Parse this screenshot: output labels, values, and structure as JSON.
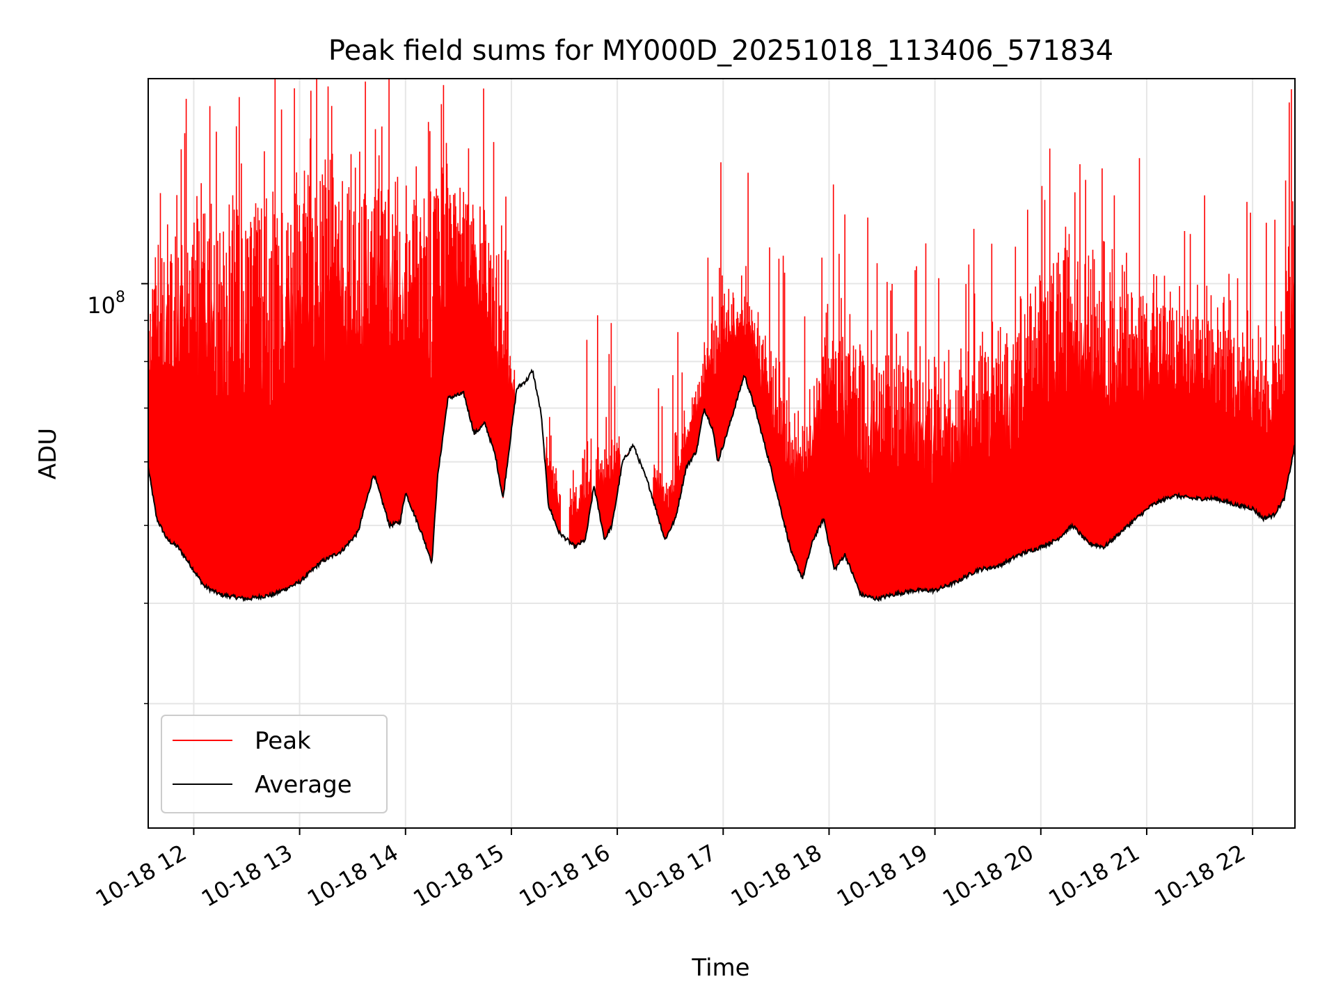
{
  "chart_data": {
    "type": "line",
    "title": "Peak field sums for MY000D_20251018_113406_571834",
    "xlabel": "Time",
    "ylabel": "ADU",
    "yscale": "log",
    "y_major_tick_label": {
      "base": "10",
      "exponent": "8"
    },
    "xlim_hours": [
      11.57,
      22.4
    ],
    "ylim": [
      21000000,
      180000000
    ],
    "x_tick_hours": [
      12,
      13,
      14,
      15,
      16,
      17,
      18,
      19,
      20,
      21,
      22
    ],
    "x_tick_labels": [
      "10-18 12",
      "10-18 13",
      "10-18 14",
      "10-18 15",
      "10-18 16",
      "10-18 17",
      "10-18 18",
      "10-18 19",
      "10-18 20",
      "10-18 21",
      "10-18 22"
    ],
    "y_minor_ticks": [
      30000000,
      40000000,
      50000000,
      60000000,
      70000000,
      80000000,
      90000000,
      200000000
    ],
    "grid": true,
    "legend_position": "lower-left",
    "series": [
      {
        "name": "Peak",
        "color": "#ff0000",
        "note": "spiky envelope above the average; approximate typical peak values",
        "x_hours": [
          11.57,
          11.75,
          12.0,
          12.25,
          12.5,
          12.75,
          13.0,
          13.25,
          13.5,
          13.75,
          14.0,
          14.25,
          14.5,
          14.75,
          15.0,
          15.2,
          15.5,
          15.75,
          16.0,
          16.25,
          16.5,
          16.75,
          17.0,
          17.25,
          17.5,
          17.75,
          18.0,
          18.25,
          18.5,
          18.75,
          19.0,
          19.25,
          19.5,
          19.75,
          20.0,
          20.25,
          20.5,
          20.75,
          21.0,
          21.25,
          21.5,
          21.75,
          22.0,
          22.25,
          22.4
        ],
        "values": [
          95000000,
          115000000,
          125000000,
          118000000,
          120000000,
          122000000,
          128000000,
          132000000,
          135000000,
          132000000,
          128000000,
          128000000,
          130000000,
          125000000,
          80000000,
          78000000,
          52000000,
          60000000,
          65000000,
          62000000,
          57000000,
          75000000,
          100000000,
          95000000,
          75000000,
          68000000,
          90000000,
          85000000,
          78000000,
          80000000,
          76000000,
          78000000,
          82000000,
          86000000,
          95000000,
          110000000,
          105000000,
          100000000,
          98000000,
          95000000,
          92000000,
          88000000,
          85000000,
          80000000,
          140000000
        ]
      },
      {
        "name": "Average",
        "color": "#000000",
        "x_hours": [
          11.57,
          11.65,
          11.75,
          11.85,
          11.95,
          12.1,
          12.25,
          12.5,
          12.75,
          13.0,
          13.2,
          13.4,
          13.55,
          13.7,
          13.85,
          13.95,
          14.0,
          14.15,
          14.25,
          14.3,
          14.4,
          14.55,
          14.65,
          14.75,
          14.85,
          14.92,
          15.05,
          15.15,
          15.2,
          15.28,
          15.35,
          15.45,
          15.6,
          15.7,
          15.78,
          15.88,
          15.95,
          16.05,
          16.15,
          16.3,
          16.45,
          16.55,
          16.65,
          16.75,
          16.82,
          16.9,
          16.95,
          17.05,
          17.2,
          17.3,
          17.45,
          17.55,
          17.65,
          17.75,
          17.85,
          17.95,
          18.05,
          18.15,
          18.3,
          18.45,
          18.6,
          18.8,
          19.0,
          19.2,
          19.4,
          19.6,
          19.8,
          20.0,
          20.15,
          20.3,
          20.45,
          20.6,
          20.75,
          20.9,
          21.05,
          21.25,
          21.45,
          21.65,
          21.85,
          22.0,
          22.1,
          22.2,
          22.3,
          22.4
        ],
        "values": [
          59000000,
          51000000,
          48000000,
          47000000,
          45000000,
          42000000,
          41000000,
          40500000,
          41000000,
          42500000,
          45000000,
          46500000,
          49000000,
          58000000,
          50000000,
          50500000,
          55000000,
          49000000,
          45000000,
          57000000,
          72000000,
          73000000,
          65000000,
          67000000,
          61000000,
          54000000,
          74000000,
          76000000,
          78000000,
          69000000,
          53000000,
          49000000,
          47000000,
          48000000,
          56000000,
          48000000,
          50000000,
          60000000,
          63000000,
          56000000,
          48000000,
          51000000,
          59000000,
          62000000,
          70000000,
          66000000,
          60000000,
          66000000,
          77000000,
          70000000,
          59000000,
          52000000,
          46000000,
          43000000,
          48000000,
          51000000,
          44000000,
          46000000,
          41000000,
          40500000,
          41000000,
          41500000,
          41500000,
          42500000,
          44000000,
          44500000,
          46000000,
          47000000,
          48000000,
          50000000,
          47500000,
          47000000,
          49000000,
          51000000,
          53000000,
          54500000,
          54000000,
          54000000,
          53000000,
          52500000,
          51000000,
          51500000,
          54000000,
          63000000
        ]
      }
    ]
  }
}
